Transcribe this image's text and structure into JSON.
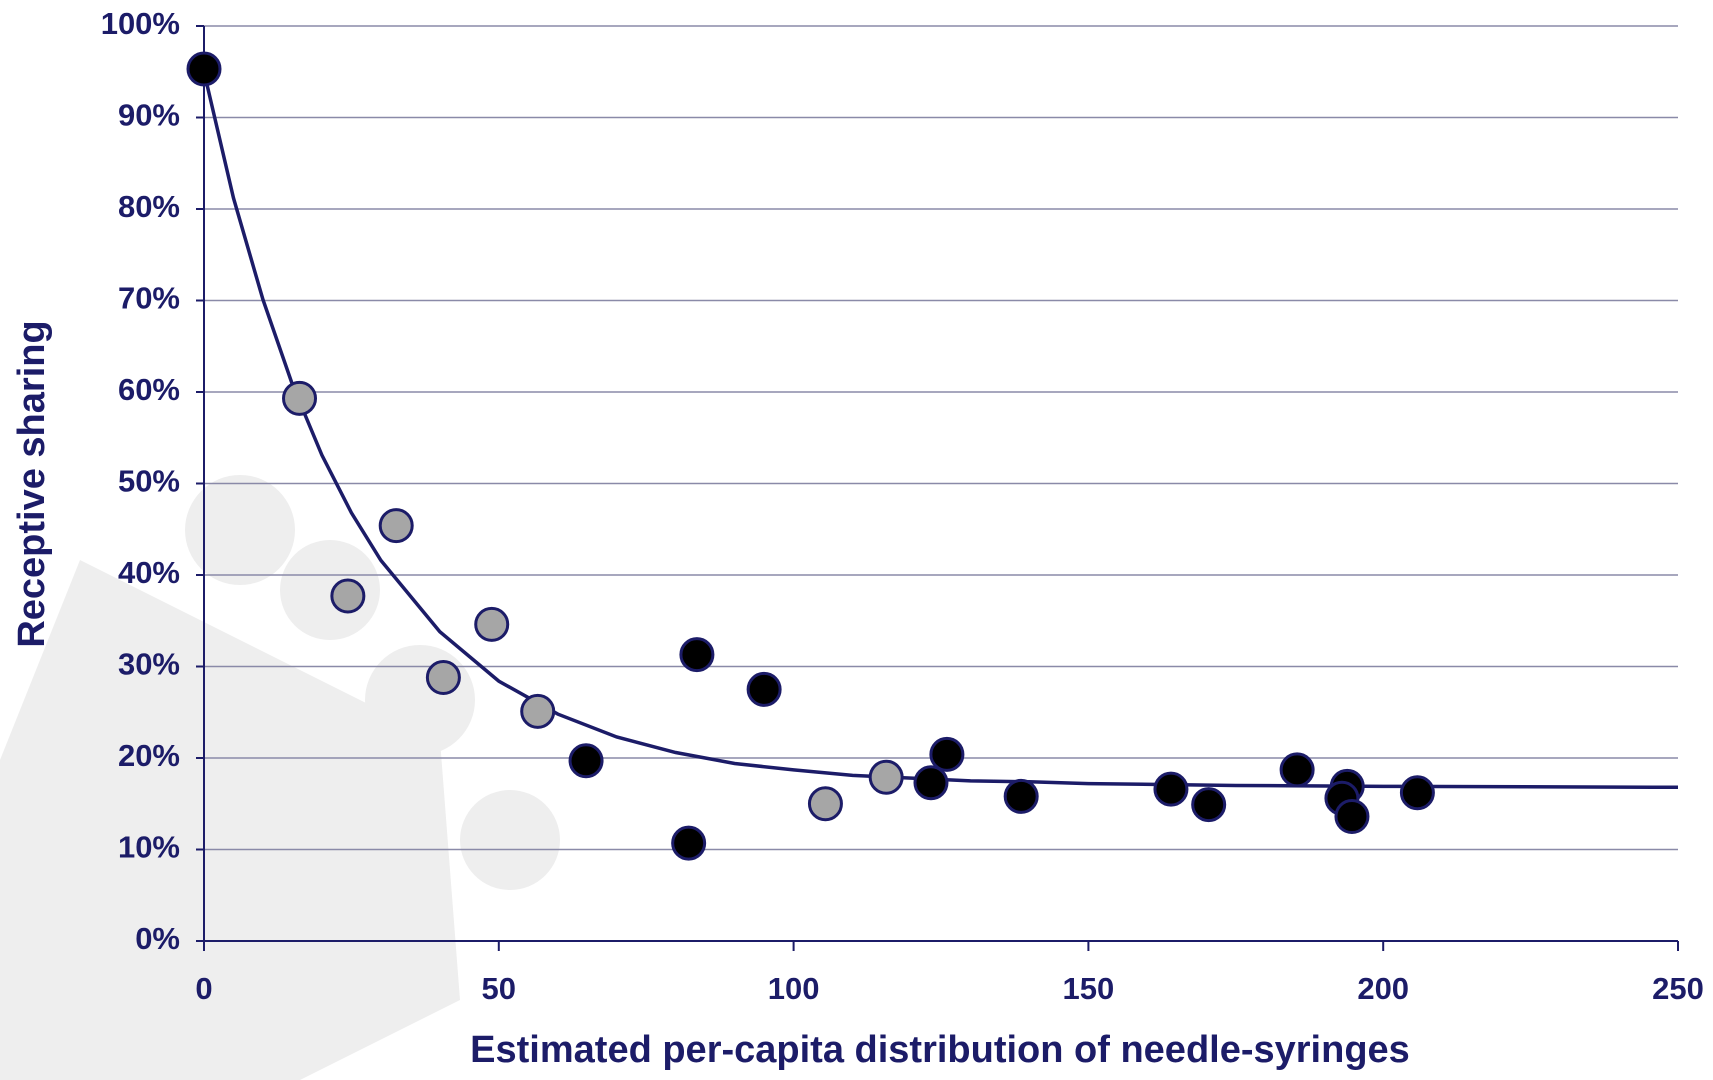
{
  "chart_data": {
    "type": "scatter",
    "x_label": "Estimated per-capita distribution of needle-syringes",
    "y_label": "Receptive sharing",
    "xlim": [
      0,
      250
    ],
    "xticks": [
      0,
      50,
      100,
      150,
      200,
      250
    ],
    "ylim": [
      0,
      100
    ],
    "yticks": [
      {
        "value": 0,
        "label": "0%"
      },
      {
        "value": 10,
        "label": "10%"
      },
      {
        "value": 20,
        "label": "20%"
      },
      {
        "value": 30,
        "label": "30%"
      },
      {
        "value": 40,
        "label": "40%"
      },
      {
        "value": 50,
        "label": "50%"
      },
      {
        "value": 60,
        "label": "60%"
      },
      {
        "value": 70,
        "label": "70%"
      },
      {
        "value": 80,
        "label": "80%"
      },
      {
        "value": 90,
        "label": "90%"
      },
      {
        "value": 100,
        "label": "100%"
      }
    ],
    "grid": true,
    "grid_color": "#8a8aa8",
    "axis_color": "#1c1c68",
    "series": [
      {
        "type": "scatter",
        "color": "#000000",
        "edge_color": "#1c1c68",
        "x": [
          0,
          64.8,
          83.6,
          82.2,
          95.0,
          123.3,
          126.0,
          138.6,
          164.0,
          170.4,
          185.4,
          193.9,
          193.0,
          194.7,
          205.8
        ],
        "values": [
          95.3,
          19.7,
          31.3,
          10.7,
          27.5,
          17.3,
          20.4,
          15.8,
          16.6,
          14.9,
          18.7,
          16.9,
          15.6,
          13.6,
          16.2
        ]
      },
      {
        "type": "scatter",
        "color": "#a6a6a6",
        "edge_color": "#1c1c68",
        "x": [
          16.2,
          32.6,
          24.4,
          48.8,
          40.6,
          56.6,
          105.4,
          115.7
        ],
        "values": [
          59.3,
          45.4,
          37.7,
          34.6,
          28.8,
          25.1,
          15.0,
          17.9
        ]
      },
      {
        "type": "line",
        "color": "#1c1c68",
        "x": [
          0,
          5,
          10,
          15,
          20,
          25,
          30,
          40,
          50,
          60,
          70,
          80,
          90,
          100,
          110,
          120,
          130,
          140,
          150,
          175,
          200,
          250
        ],
        "values": [
          95,
          81.2,
          70.1,
          60.8,
          53.1,
          46.8,
          41.6,
          33.8,
          28.4,
          24.8,
          22.3,
          20.6,
          19.4,
          18.7,
          18.1,
          17.8,
          17.5,
          17.4,
          17.2,
          17.0,
          16.9,
          16.8
        ]
      }
    ]
  }
}
